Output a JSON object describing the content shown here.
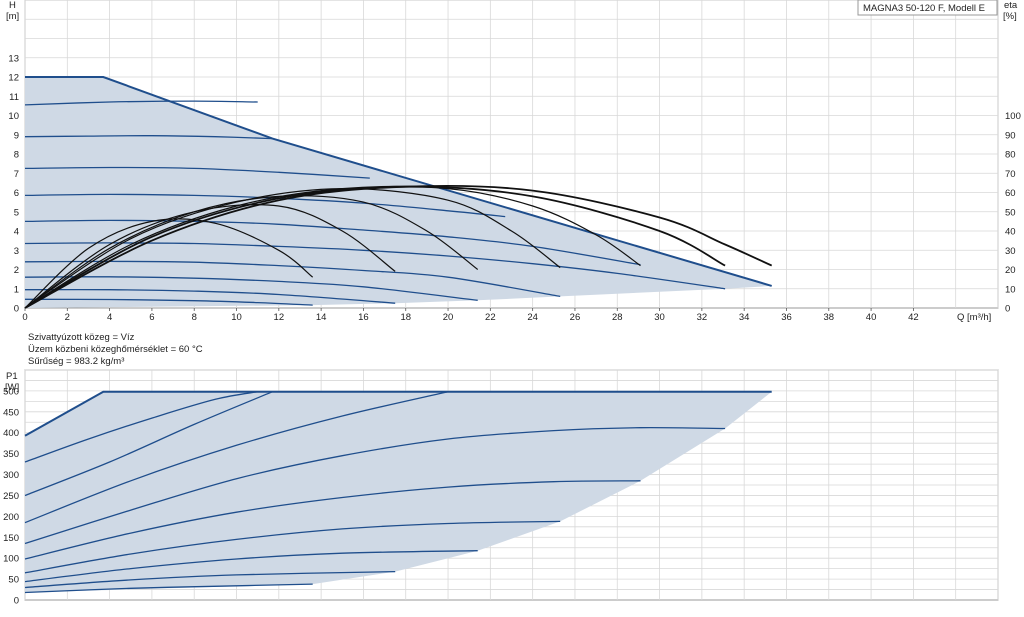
{
  "model_box": "MAGNA3 50-120 F, Modell E",
  "conditions": [
    "Szivattyúzott közeg = Víz",
    "Üzem közbeni közeghőmérséklet = 60 °C",
    "Sűrűség = 983.2 kg/m³"
  ],
  "colors": {
    "envelope_fill": "#cfd9e5",
    "pump_curve": "#1f4e8c",
    "efficiency_curve": "#111111",
    "grid": "#d8d8d8",
    "frame": "#999999"
  },
  "chart_data": [
    {
      "type": "line",
      "title": "H",
      "ylabel_line1": "H",
      "ylabel_line2": "[m]",
      "y2label_line1": "eta",
      "y2label_line2": "[%]",
      "xlabel": "Q [m³/h]",
      "xlim": [
        0,
        46
      ],
      "ylim": [
        0,
        16
      ],
      "y2lim": [
        0,
        160
      ],
      "xticks": [
        0,
        2,
        4,
        6,
        8,
        10,
        12,
        14,
        16,
        18,
        20,
        22,
        24,
        26,
        28,
        30,
        32,
        34,
        36,
        38,
        40,
        42
      ],
      "yticks": [
        0,
        1,
        2,
        3,
        4,
        5,
        6,
        7,
        8,
        9,
        10,
        11,
        12,
        13
      ],
      "y2ticks": [
        0,
        10,
        20,
        30,
        40,
        50,
        60,
        70,
        80,
        90,
        100
      ],
      "grid": true,
      "envelope": [
        [
          0,
          12
        ],
        [
          3.7,
          12
        ],
        [
          11.7,
          8.8
        ],
        [
          35.3,
          1.15
        ],
        [
          33.1,
          1.0
        ],
        [
          29.1,
          0.8
        ],
        [
          25.3,
          0.6
        ],
        [
          21.4,
          0.4
        ],
        [
          17.5,
          0.25
        ],
        [
          13.6,
          0.15
        ],
        [
          0,
          0
        ]
      ],
      "series": [
        {
          "kind": "pump",
          "x": [
            0,
            3.7,
            11.7,
            35.3
          ],
          "y": [
            12,
            12,
            8.8,
            1.15
          ]
        },
        {
          "kind": "pump",
          "x": [
            0,
            4,
            8,
            11
          ],
          "y": [
            10.55,
            10.7,
            10.75,
            10.7
          ]
        },
        {
          "kind": "pump",
          "x": [
            0,
            3,
            6,
            9,
            11.7
          ],
          "y": [
            8.9,
            8.93,
            8.95,
            8.9,
            8.8
          ]
        },
        {
          "kind": "pump",
          "x": [
            0,
            4,
            8,
            12,
            16.3
          ],
          "y": [
            7.25,
            7.3,
            7.25,
            7.05,
            6.75
          ]
        },
        {
          "kind": "pump",
          "x": [
            0,
            4,
            8,
            12,
            16,
            20,
            22.7
          ],
          "y": [
            5.85,
            5.9,
            5.85,
            5.7,
            5.45,
            5.05,
            4.75
          ]
        },
        {
          "kind": "pump",
          "x": [
            0,
            4,
            8,
            12,
            16,
            20,
            24,
            29.1
          ],
          "y": [
            4.5,
            4.55,
            4.5,
            4.35,
            4.05,
            3.7,
            3.2,
            2.25
          ]
        },
        {
          "kind": "pump",
          "x": [
            0,
            4,
            8,
            12,
            16,
            20,
            24,
            28,
            33.1
          ],
          "y": [
            3.35,
            3.38,
            3.35,
            3.2,
            3.0,
            2.7,
            2.3,
            1.8,
            1.0
          ]
        },
        {
          "kind": "pump",
          "x": [
            0,
            4,
            8,
            12,
            16,
            20,
            25.3
          ],
          "y": [
            2.4,
            2.42,
            2.38,
            2.2,
            1.95,
            1.6,
            0.6
          ]
        },
        {
          "kind": "pump",
          "x": [
            0,
            4,
            8,
            12,
            16,
            21.4
          ],
          "y": [
            1.6,
            1.62,
            1.55,
            1.38,
            1.1,
            0.4
          ]
        },
        {
          "kind": "pump",
          "x": [
            0,
            4,
            8,
            12,
            17.5
          ],
          "y": [
            0.95,
            0.95,
            0.88,
            0.7,
            0.25
          ]
        },
        {
          "kind": "pump",
          "x": [
            0,
            4,
            8,
            11,
            13.6
          ],
          "y": [
            0.45,
            0.44,
            0.38,
            0.28,
            0.15
          ]
        },
        {
          "kind": "efficiency",
          "x": [
            0,
            3,
            6,
            9,
            12,
            13.6
          ],
          "y": [
            0,
            31,
            45,
            44,
            30,
            16
          ]
        },
        {
          "kind": "efficiency",
          "x": [
            0,
            4,
            8,
            12,
            15,
            17.5
          ],
          "y": [
            0,
            33,
            50,
            53,
            40,
            19
          ]
        },
        {
          "kind": "efficiency",
          "x": [
            0,
            4,
            8,
            12,
            16,
            19,
            21.4
          ],
          "y": [
            0,
            31,
            50,
            58,
            55,
            40,
            20
          ]
        },
        {
          "kind": "efficiency",
          "x": [
            0,
            5,
            10,
            15,
            20,
            23,
            25.3
          ],
          "y": [
            0,
            36,
            55,
            62,
            56,
            40,
            21
          ]
        },
        {
          "kind": "efficiency",
          "x": [
            0,
            5,
            10,
            15,
            20,
            24,
            27,
            29.1
          ],
          "y": [
            0,
            33,
            53,
            62,
            62,
            53,
            38,
            22
          ]
        },
        {
          "kind": "efficiency",
          "x": [
            0,
            6,
            12,
            18,
            24,
            30,
            33.1
          ],
          "y": [
            0,
            37,
            57,
            63,
            58,
            40,
            22
          ]
        },
        {
          "kind": "efficiency",
          "x": [
            0,
            6,
            12,
            18,
            24,
            30,
            33.1,
            35.3
          ],
          "y": [
            0,
            35,
            56,
            63,
            61,
            47,
            33,
            22
          ]
        }
      ]
    },
    {
      "type": "line",
      "title": "P1",
      "ylabel_line1": "P1",
      "ylabel_line2": "[W]",
      "xlim": [
        0,
        46
      ],
      "ylim": [
        0,
        550
      ],
      "yticks": [
        0,
        50,
        100,
        150,
        200,
        250,
        300,
        350,
        400,
        450,
        500
      ],
      "grid": true,
      "envelope": [
        [
          0,
          393
        ],
        [
          3.7,
          498
        ],
        [
          35.3,
          498
        ],
        [
          33.1,
          410
        ],
        [
          29.1,
          285
        ],
        [
          25.3,
          188
        ],
        [
          21.4,
          118
        ],
        [
          17.5,
          68
        ],
        [
          13.6,
          38
        ],
        [
          0,
          18
        ]
      ],
      "series": [
        {
          "kind": "power",
          "x": [
            0,
            3.7,
            35.3
          ],
          "y": [
            393,
            498,
            498
          ]
        },
        {
          "kind": "power",
          "x": [
            0,
            3,
            6,
            9,
            11
          ],
          "y": [
            330,
            385,
            435,
            480,
            498
          ]
        },
        {
          "kind": "power",
          "x": [
            0,
            4,
            8,
            11.7
          ],
          "y": [
            250,
            330,
            420,
            498
          ]
        },
        {
          "kind": "power",
          "x": [
            0,
            5,
            10,
            15,
            20
          ],
          "y": [
            185,
            285,
            370,
            440,
            498
          ]
        },
        {
          "kind": "power",
          "x": [
            0,
            5,
            10,
            15,
            20,
            25,
            29.1,
            33.1
          ],
          "y": [
            135,
            215,
            290,
            345,
            385,
            405,
            412,
            410
          ]
        },
        {
          "kind": "power",
          "x": [
            0,
            5,
            10,
            15,
            20,
            25,
            29.1
          ],
          "y": [
            98,
            160,
            210,
            245,
            270,
            283,
            285
          ]
        },
        {
          "kind": "power",
          "x": [
            0,
            5,
            10,
            15,
            20,
            25.3
          ],
          "y": [
            65,
            110,
            145,
            170,
            183,
            188
          ]
        },
        {
          "kind": "power",
          "x": [
            0,
            5,
            10,
            15,
            21.4
          ],
          "y": [
            44,
            75,
            98,
            112,
            118
          ]
        },
        {
          "kind": "power",
          "x": [
            0,
            5,
            10,
            17.5
          ],
          "y": [
            30,
            48,
            60,
            68
          ]
        },
        {
          "kind": "power",
          "x": [
            0,
            5,
            10,
            13.6
          ],
          "y": [
            18,
            28,
            34,
            38
          ]
        }
      ]
    }
  ]
}
